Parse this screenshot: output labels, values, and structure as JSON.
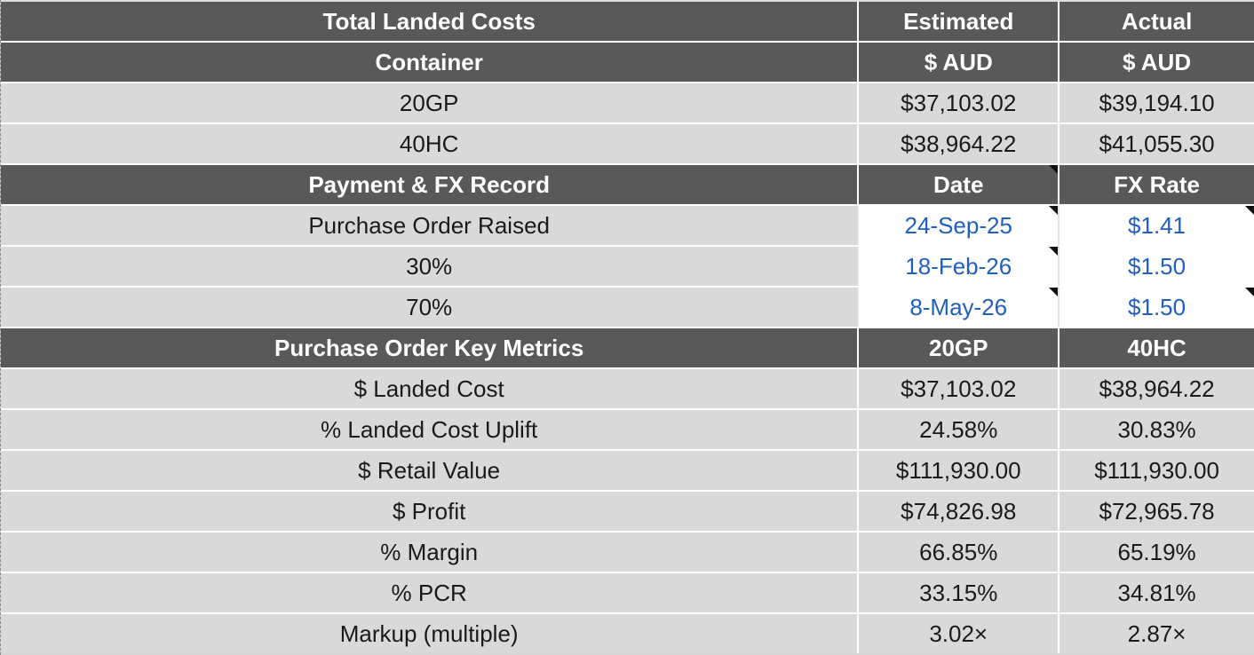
{
  "sections": [
    {
      "header": [
        "Total Landed Costs",
        "Estimated",
        "Actual"
      ],
      "subheader": [
        "Container",
        "$ AUD",
        "$ AUD"
      ],
      "rows": [
        [
          "20GP",
          "$37,103.02",
          "$39,194.10"
        ],
        [
          "40HC",
          "$38,964.22",
          "$41,055.30"
        ]
      ]
    },
    {
      "header": [
        "Payment & FX Record",
        "Date",
        "FX Rate"
      ],
      "rows": [
        [
          "Purchase Order Raised",
          "24-Sep-25",
          "$1.41"
        ],
        [
          "30%",
          "18-Feb-26",
          "$1.50"
        ],
        [
          "70%",
          "8-May-26",
          "$1.50"
        ]
      ]
    },
    {
      "header": [
        "Purchase Order Key Metrics",
        "20GP",
        "40HC"
      ],
      "rows": [
        [
          "$ Landed Cost",
          "$37,103.02",
          "$38,964.22"
        ],
        [
          "% Landed Cost Uplift",
          "24.58%",
          "30.83%"
        ],
        [
          "$ Retail Value",
          "$111,930.00",
          "$111,930.00"
        ],
        [
          "$ Profit",
          "$74,826.98",
          "$72,965.78"
        ],
        [
          "% Margin",
          "66.85%",
          "65.19%"
        ],
        [
          "% PCR",
          "33.15%",
          "34.81%"
        ],
        [
          "Markup (multiple)",
          "3.02×",
          "2.87×"
        ]
      ]
    }
  ],
  "colors": {
    "header_bg": "#595959",
    "data_bg": "#d9d9d9",
    "input_text": "#1f5fbf"
  }
}
